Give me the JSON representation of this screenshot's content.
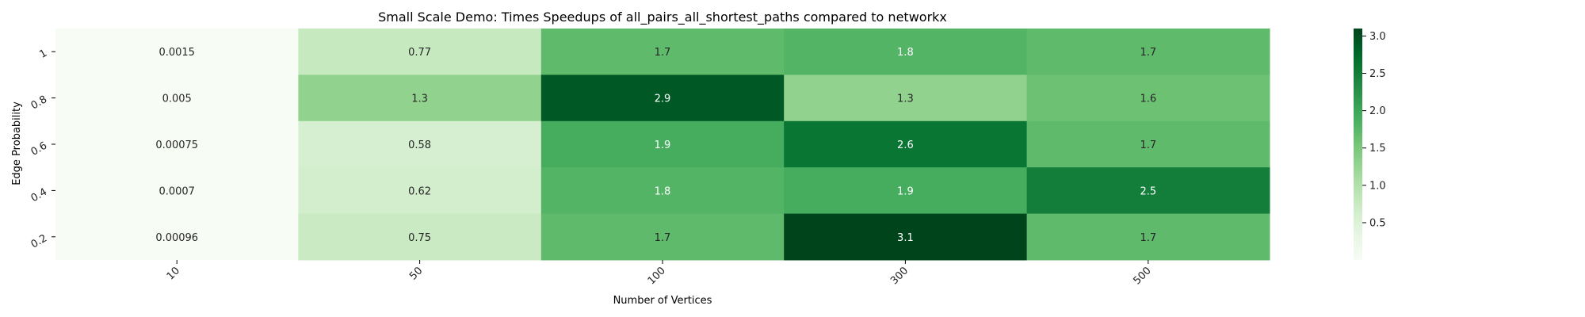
{
  "chart_data": {
    "type": "heatmap",
    "title": "Small Scale Demo: Times Speedups of all_pairs_all_shortest_paths compared to networkx",
    "xlabel": "Number of Vertices",
    "ylabel": "Edge Probability",
    "x_categories": [
      "10",
      "50",
      "100",
      "300",
      "500"
    ],
    "y_categories": [
      "1",
      "0.8",
      "0.6",
      "0.4",
      "0.2"
    ],
    "values": [
      [
        0.0015,
        0.77,
        1.7,
        1.8,
        1.7
      ],
      [
        0.005,
        1.3,
        2.9,
        1.3,
        1.6
      ],
      [
        0.00075,
        0.58,
        1.9,
        2.6,
        1.7
      ],
      [
        0.0007,
        0.62,
        1.8,
        1.9,
        2.5
      ],
      [
        0.00096,
        0.75,
        1.7,
        3.1,
        1.7
      ]
    ],
    "labels": [
      [
        "0.0015",
        "0.77",
        "1.7",
        "1.8",
        "1.7"
      ],
      [
        "0.005",
        "1.3",
        "2.9",
        "1.3",
        "1.6"
      ],
      [
        "0.00075",
        "0.58",
        "1.9",
        "2.6",
        "1.7"
      ],
      [
        "0.0007",
        "0.62",
        "1.8",
        "1.9",
        "2.5"
      ],
      [
        "0.00096",
        "0.75",
        "1.7",
        "3.1",
        "1.7"
      ]
    ],
    "vmin": 0.0007,
    "vmax": 3.1,
    "colormap": "Greens",
    "colorbar_ticks": [
      "0.5",
      "1.0",
      "1.5",
      "2.0",
      "2.5",
      "3.0"
    ],
    "grid": false
  }
}
